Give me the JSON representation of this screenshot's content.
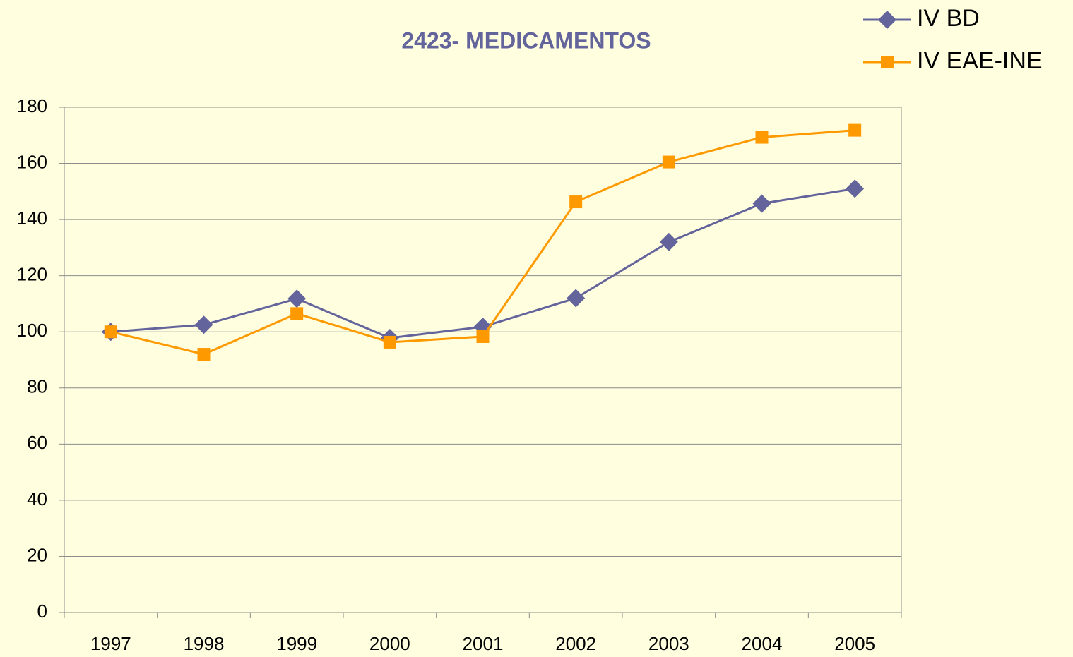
{
  "chart_data": {
    "type": "line",
    "title": "2423- MEDICAMENTOS",
    "categories": [
      "1997",
      "1998",
      "1999",
      "2000",
      "2001",
      "2002",
      "2003",
      "2004",
      "2005"
    ],
    "series": [
      {
        "name": "IV BD",
        "color": "#64649c",
        "marker": "diamond",
        "values": [
          100,
          102.5,
          111.8,
          97.8,
          101.8,
          112,
          132,
          145.7,
          151
        ]
      },
      {
        "name": "IV EAE-INE",
        "color": "#ff9900",
        "marker": "square",
        "values": [
          100,
          92,
          106.5,
          96.3,
          98.3,
          146.3,
          160.5,
          169.3,
          171.8
        ]
      }
    ],
    "ylim": [
      0,
      180
    ],
    "yticks": [
      0,
      20,
      40,
      60,
      80,
      100,
      120,
      140,
      160,
      180
    ],
    "grid": true,
    "legend": "top-right"
  }
}
